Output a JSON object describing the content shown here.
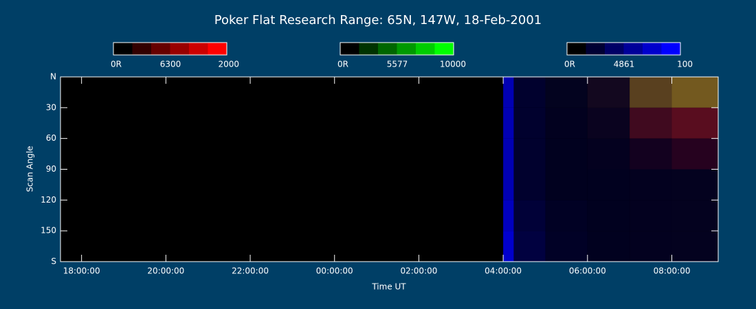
{
  "chart_data": {
    "type": "keogram",
    "title": "Poker Flat Research Range: 65N, 147W, 18-Feb-2001",
    "xlabel": "Time UT",
    "ylabel": "Scan Angle",
    "xlim": [
      17.5,
      33.1
    ],
    "xticks": [
      {
        "value": 18,
        "label": "18:00:00"
      },
      {
        "value": 20,
        "label": "20:00:00"
      },
      {
        "value": 22,
        "label": "22:00:00"
      },
      {
        "value": 24,
        "label": "00:00:00"
      },
      {
        "value": 26,
        "label": "02:00:00"
      },
      {
        "value": 28,
        "label": "04:00:00"
      },
      {
        "value": 30,
        "label": "06:00:00"
      },
      {
        "value": 32,
        "label": "08:00:00"
      }
    ],
    "ylim": [
      0,
      180
    ],
    "yticks": [
      {
        "value": 0,
        "label": "N"
      },
      30,
      60,
      90,
      120,
      150,
      {
        "value": 180,
        "label": "S"
      }
    ],
    "x_bins": [
      28,
      28.25,
      29,
      30,
      31,
      32,
      33.1
    ],
    "y_bins": [
      0,
      30,
      60,
      90,
      120,
      150,
      180
    ],
    "series": [
      {
        "name": "6300",
        "color": "#ff0000",
        "scale": [
          {
            "value": 0,
            "label": "0R"
          },
          2000
        ],
        "values": [
          [
            5,
            10,
            20,
            150,
            700,
            900
          ],
          [
            5,
            10,
            15,
            80,
            500,
            700
          ],
          [
            5,
            5,
            10,
            30,
            150,
            300
          ],
          [
            5,
            5,
            5,
            10,
            20,
            30
          ],
          [
            5,
            5,
            5,
            10,
            20,
            30
          ],
          [
            5,
            5,
            5,
            10,
            20,
            30
          ]
        ]
      },
      {
        "name": "5577",
        "color": "#00ff00",
        "scale": [
          {
            "value": 0,
            "label": "0R"
          },
          10000
        ],
        "values": [
          [
            10,
            50,
            100,
            300,
            2500,
            3500
          ],
          [
            10,
            30,
            50,
            100,
            400,
            500
          ],
          [
            10,
            20,
            30,
            40,
            50,
            60
          ],
          [
            10,
            20,
            30,
            40,
            50,
            60
          ],
          [
            10,
            20,
            30,
            40,
            50,
            60
          ],
          [
            10,
            20,
            30,
            40,
            50,
            60
          ]
        ]
      },
      {
        "name": "4861",
        "color": "#0000ff",
        "scale": [
          {
            "value": 0,
            "label": "0R"
          },
          100
        ],
        "values": [
          [
            70,
            18,
            12,
            12,
            12,
            12
          ],
          [
            70,
            18,
            12,
            12,
            12,
            12
          ],
          [
            70,
            18,
            12,
            12,
            12,
            12
          ],
          [
            70,
            18,
            12,
            12,
            12,
            12
          ],
          [
            75,
            22,
            14,
            12,
            12,
            12
          ],
          [
            80,
            25,
            15,
            12,
            12,
            12
          ]
        ]
      }
    ]
  }
}
